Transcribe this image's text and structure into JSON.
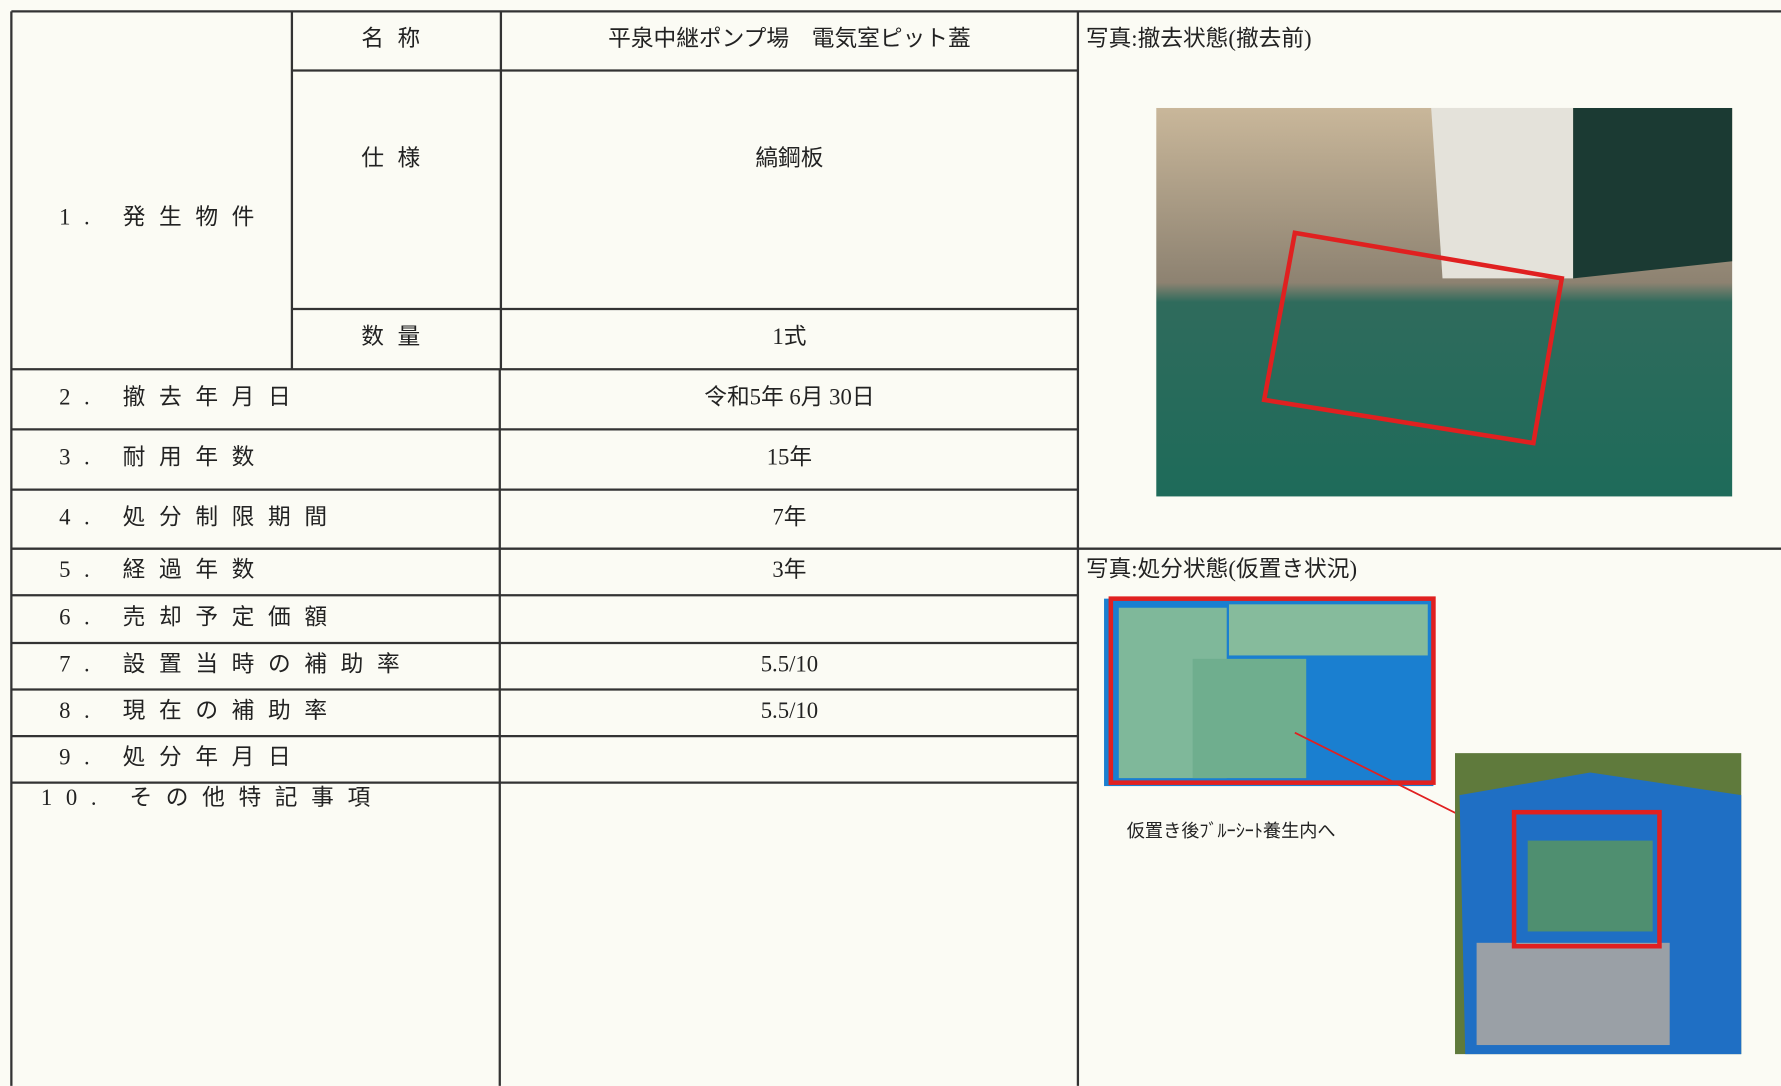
{
  "section_1": {
    "label": "1. 発生物件",
    "rows": [
      {
        "label": "名称",
        "value": "平泉中継ポンプ場　電気室ピット蓋"
      },
      {
        "label": "仕様",
        "value": "縞鋼板"
      },
      {
        "label": "数量",
        "value": "1式"
      }
    ]
  },
  "items": [
    {
      "label": "2. 撤去年月日",
      "value": "令和5年  6月  30日"
    },
    {
      "label": "3. 耐用年数",
      "value": "15年"
    },
    {
      "label": "4. 処分制限期間",
      "value": "7年"
    },
    {
      "label": "5. 経過年数",
      "value": "3年"
    },
    {
      "label": "6. 売却予定価額"
    },
    {
      "label": "7. 設置当時の補助率",
      "value": "5.5/10"
    },
    {
      "label": "8. 現在の補助率",
      "value": "5.5/10"
    },
    {
      "label": "9. 処分年月日"
    },
    {
      "label": "10. その他特記事項"
    }
  ],
  "photo_before": {
    "caption": "写真:撤去状態(撤去前)"
  },
  "photo_disposal": {
    "caption": "写真:処分状態(仮置き状況)",
    "note": "仮置き後ﾌﾞﾙｰｼｰﾄ養生内へ"
  }
}
